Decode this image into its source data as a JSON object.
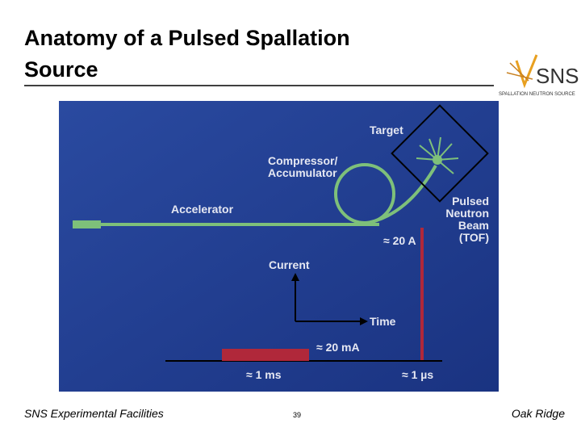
{
  "header": {
    "title_lines": [
      "Anatomy of a Pulsed Spallation",
      "Source"
    ],
    "logo": {
      "text": "SNS",
      "subtext": "SPALLATION NEUTRON SOURCE"
    }
  },
  "diagram": {
    "target": "Target",
    "compressor": [
      "Compressor/",
      "Accumulator"
    ],
    "accelerator": "Accelerator",
    "beam": [
      "Pulsed",
      "Neutron",
      "Beam",
      "(TOF)"
    ],
    "peak_current": "≈ 20 A",
    "current_axis": "Current",
    "time_axis": "Time",
    "avg_current": "≈ 20 mA",
    "pulse_long": "≈ 1 ms",
    "pulse_short": "≈ 1 µs"
  },
  "footer": {
    "left": "SNS Experimental Facilities",
    "page": "39",
    "right": "Oak Ridge"
  }
}
